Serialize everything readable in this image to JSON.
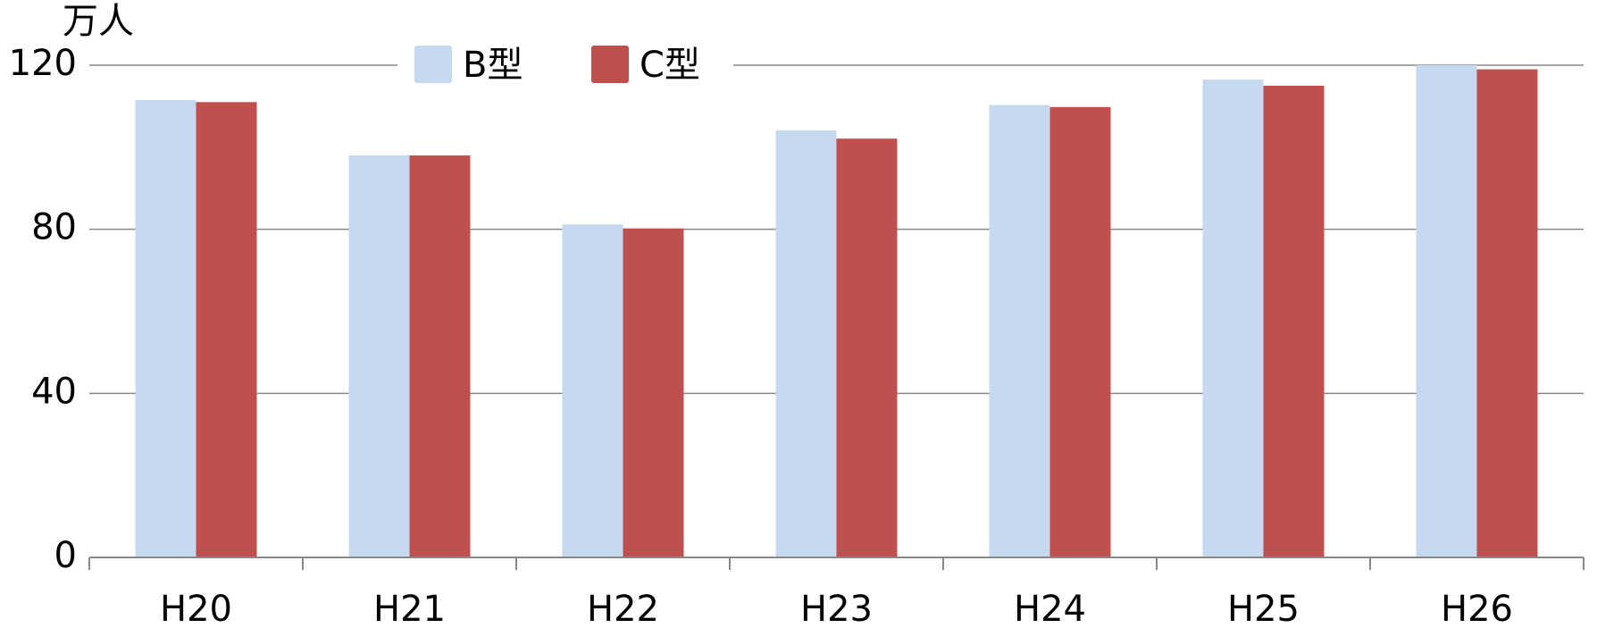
{
  "chart_data": {
    "type": "bar",
    "y_unit": "万人",
    "categories": [
      "H20",
      "H21",
      "H22",
      "H23",
      "H24",
      "H25",
      "H26"
    ],
    "series": [
      {
        "name": "B型",
        "color": "#c6d9f0",
        "values": [
          111.5,
          98,
          81.2,
          104.1,
          110.3,
          116.5,
          120
        ]
      },
      {
        "name": "C型",
        "color": "#c0504d",
        "values": [
          111,
          98,
          80.2,
          102.1,
          109.8,
          115,
          119
        ]
      }
    ],
    "ylim": [
      0,
      120
    ],
    "yticks": [
      0,
      40,
      80,
      120
    ],
    "grid": true,
    "legend": "top"
  }
}
